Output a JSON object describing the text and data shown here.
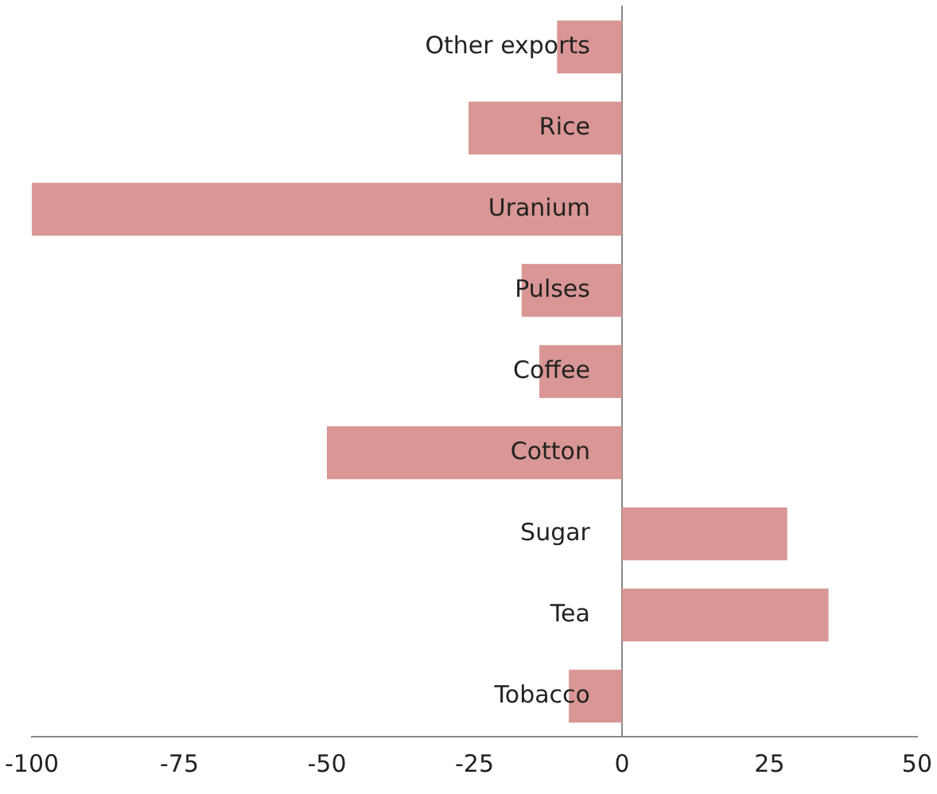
{
  "chart_data": {
    "type": "bar",
    "orientation": "horizontal",
    "categories": [
      "Other exports",
      "Rice",
      "Uranium",
      "Pulses",
      "Coffee",
      "Cotton",
      "Sugar",
      "Tea",
      "Tobacco"
    ],
    "values": [
      -11,
      -26,
      -100,
      -17,
      -14,
      -50,
      28,
      35,
      -9
    ],
    "color": "#d99694",
    "xlim": [
      -100,
      50
    ],
    "xticks": [
      -100,
      -75,
      -50,
      -25,
      0,
      25,
      50
    ],
    "grid": false,
    "legend": false
  }
}
